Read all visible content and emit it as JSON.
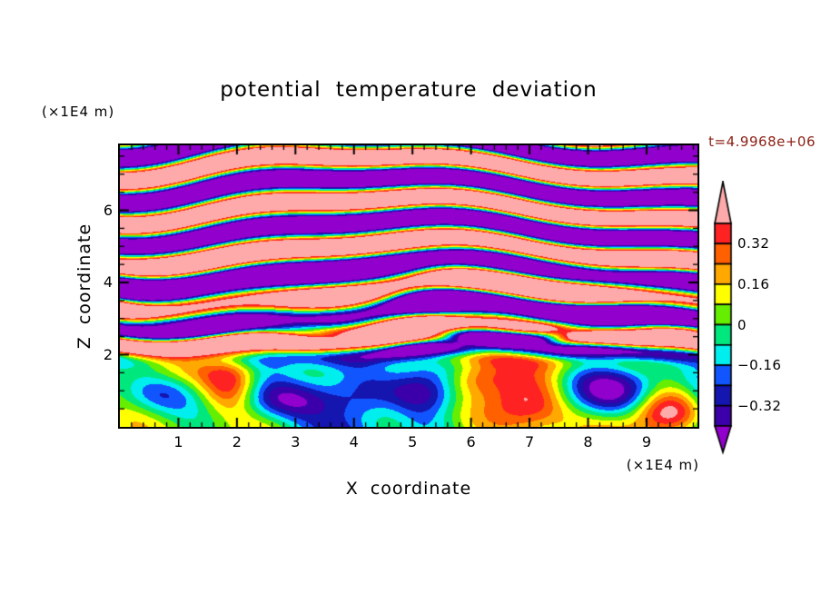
{
  "header": {
    "title": "potential temperature deviation",
    "timestamp": "t=4.9968e+06",
    "timestamp_color": "#8b2015"
  },
  "axes": {
    "x": {
      "label": "X coordinate",
      "unit": "(×1E4 m)",
      "min": 0,
      "max": 9.87,
      "major_ticks": [
        1,
        2,
        3,
        4,
        5,
        6,
        7,
        8,
        9
      ],
      "minor_step": 0.2
    },
    "z": {
      "label": "Z coordinate",
      "unit": "(×1E4 m)",
      "min": 0,
      "max": 7.8,
      "major_ticks": [
        2,
        4,
        6
      ],
      "minor_step": 0.5
    }
  },
  "chart_data": {
    "type": "contour",
    "title": "potential temperature deviation",
    "xlabel": "X coordinate",
    "ylabel": "Z coordinate",
    "x_unit": "(×1E4 m)",
    "z_unit": "(×1E4 m)",
    "x_range": [
      0,
      9.87
    ],
    "z_range": [
      0,
      7.8
    ],
    "x_major_ticks": [
      1,
      2,
      3,
      4,
      5,
      6,
      7,
      8,
      9
    ],
    "x_minor_step": 0.2,
    "z_major_ticks": [
      2,
      4,
      6
    ],
    "z_minor_step": 0.5,
    "timestamp": "t=4.9968e+06",
    "contour_levels": [
      -0.4,
      -0.32,
      -0.24,
      -0.16,
      -0.08,
      0,
      0.08,
      0.16,
      0.24,
      0.32,
      0.4
    ],
    "colorbar_labels": [
      "0.32",
      "0.16",
      "0",
      "−0.16",
      "−0.32"
    ],
    "colorbar_labeled_level_indices": [
      9,
      7,
      5,
      3,
      1
    ],
    "palette": {
      "over": "#ffaaaa",
      "under": "#9100cc",
      "bands_low_to_high": [
        "#3c00aa",
        "#1515b0",
        "#1155ff",
        "#00eeee",
        "#00e87d",
        "#66ee00",
        "#ffff00",
        "#ffa800",
        "#ff6000",
        "#ff2222"
      ]
    },
    "grid": false,
    "legend_position": "right-colorbar",
    "features": {
      "upper_region": "alternating saturated wave bands: > 0.4 (pink) and < −0.4 (purple) above z ≈ 2.5, with thin rainbow contour fringes",
      "middle_region": "braided thin striped layer near z ≈ 2.0–2.8 with mixed pockets",
      "lower_region": "convective boundary layer below z ≈ 2 in greens/cyans with eddies and plumes",
      "lower_layer_blobs": [
        [
          0.6,
          0.9,
          0.55,
          0.45,
          -0.38
        ],
        [
          2.9,
          0.75,
          0.7,
          0.4,
          -0.36
        ],
        [
          5.0,
          0.95,
          0.55,
          0.4,
          -0.3
        ],
        [
          8.45,
          0.95,
          0.85,
          0.5,
          -0.52
        ],
        [
          1.9,
          1.25,
          0.35,
          0.6,
          0.42
        ],
        [
          4.65,
          0.7,
          0.4,
          0.8,
          0.38
        ],
        [
          7.0,
          0.6,
          0.5,
          0.55,
          0.45
        ],
        [
          9.35,
          0.45,
          0.45,
          0.5,
          0.55
        ],
        [
          6.1,
          1.4,
          0.4,
          0.4,
          0.3
        ]
      ]
    }
  }
}
